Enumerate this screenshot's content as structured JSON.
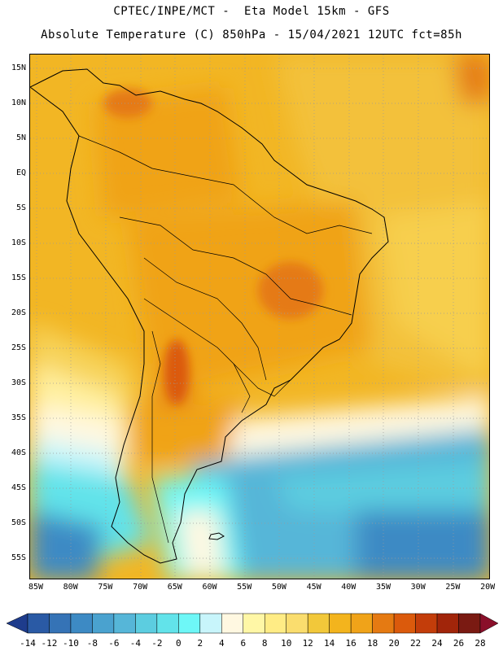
{
  "header": {
    "line1": "CPTEC/INPE/MCT -  Eta Model 15km - GFS",
    "line2": "Absolute Temperature (C) 850hPa - 15/04/2021 12UTC fct=85h"
  },
  "latitude_labels": [
    "15N",
    "10N",
    "5N",
    "EQ",
    "5S",
    "10S",
    "15S",
    "20S",
    "25S",
    "30S",
    "35S",
    "40S",
    "45S",
    "50S",
    "55S"
  ],
  "longitude_labels": [
    "85W",
    "80W",
    "75W",
    "70W",
    "65W",
    "60W",
    "55W",
    "50W",
    "45W",
    "40W",
    "35W",
    "30W",
    "25W",
    "20W"
  ],
  "colorbar": {
    "labels": [
      "-14",
      "-12",
      "-10",
      "-8",
      "-6",
      "-4",
      "-2",
      "0",
      "2",
      "4",
      "6",
      "8",
      "10",
      "12",
      "14",
      "16",
      "18",
      "20",
      "22",
      "24",
      "26",
      "28"
    ],
    "colors": [
      "#1e3c8c",
      "#2a5aa5",
      "#3573b6",
      "#3d8ac4",
      "#4aa2cf",
      "#56b6d8",
      "#5ccde0",
      "#62e3ea",
      "#6ef7f7",
      "#c8f5fb",
      "#fff8e1",
      "#fff7a6",
      "#ffec85",
      "#fadd6e",
      "#f2c83a",
      "#f3b41d",
      "#f0a319",
      "#e57a12",
      "#db5a0c",
      "#c33d0a",
      "#a1250a",
      "#7a1a12",
      "#8a0f2a"
    ]
  },
  "icons": {
    "left_arrow": "colorbar-left-arrow-icon",
    "right_arrow": "colorbar-right-arrow-icon"
  }
}
